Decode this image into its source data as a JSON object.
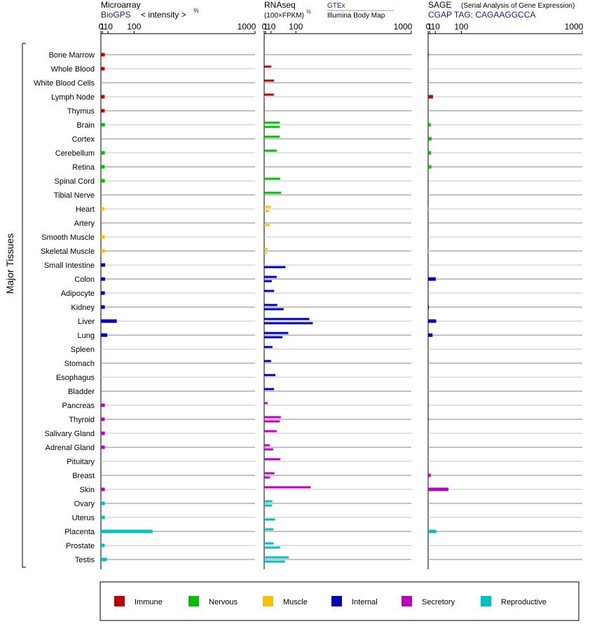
{
  "panels": [
    {
      "title": "Microarray",
      "subtitle": "BioGPS",
      "scale_label": "< intensity >",
      "scale_exp": "⅔",
      "ticks": [
        "0",
        "1",
        "10",
        "100",
        "1000"
      ],
      "tick_values": [
        0,
        1,
        10,
        100,
        1000
      ]
    },
    {
      "title": "RNAseq",
      "subtitle": "(100×FPKM)",
      "subtitle_exp": "½",
      "source1": "GTEx",
      "source2": "Illumina Body Map",
      "ticks": [
        "0",
        "1",
        "10",
        "100",
        "1000"
      ],
      "tick_values": [
        0,
        1,
        10,
        100,
        1000
      ]
    },
    {
      "title": "SAGE",
      "title_note": "(Serial Analysis of Gene Expression)",
      "subtitle": "CGAP TAG: CAGAAGGCCA",
      "ticks": [
        "0",
        "1",
        "10",
        "100",
        "1000"
      ],
      "tick_values": [
        0,
        1,
        10,
        100,
        1000
      ]
    }
  ],
  "y_axis_label": "Major Tissues",
  "legend": [
    {
      "label": "Immune",
      "color": "#c00000"
    },
    {
      "label": "Nervous",
      "color": "#00c000"
    },
    {
      "label": "Muscle",
      "color": "#ffc000"
    },
    {
      "label": "Internal",
      "color": "#0000b8"
    },
    {
      "label": "Secretory",
      "color": "#c000c0"
    },
    {
      "label": "Reproductive",
      "color": "#00c0c0"
    }
  ],
  "chart_data": {
    "type": "bar",
    "x_scale": "power-scaled intensity (0, 1, 10, 100, 1000)",
    "xlim": [
      0,
      1000
    ],
    "categories": [
      "Bone Marrow",
      "Whole Blood",
      "White Blood Cells",
      "Lymph Node",
      "Thymus",
      "Brain",
      "Cortex",
      "Cerebellum",
      "Retina",
      "Spinal Cord",
      "Tibial Nerve",
      "Heart",
      "Artery",
      "Smooth Muscle",
      "Skeletal Muscle",
      "Small Intestine",
      "Colon",
      "Adipocyte",
      "Kidney",
      "Liver",
      "Lung",
      "Spleen",
      "Stomach",
      "Esophagus",
      "Bladder",
      "Pancreas",
      "Thyroid",
      "Salivary Gland",
      "Adrenal Gland",
      "Pituitary",
      "Breast",
      "Skin",
      "Ovary",
      "Uterus",
      "Placenta",
      "Prostate",
      "Testis"
    ],
    "groups": [
      "Immune",
      "Immune",
      "Immune",
      "Immune",
      "Immune",
      "Nervous",
      "Nervous",
      "Nervous",
      "Nervous",
      "Nervous",
      "Nervous",
      "Muscle",
      "Muscle",
      "Muscle",
      "Muscle",
      "Internal",
      "Internal",
      "Internal",
      "Internal",
      "Internal",
      "Internal",
      "Internal",
      "Internal",
      "Internal",
      "Internal",
      "Secretory",
      "Secretory",
      "Secretory",
      "Secretory",
      "Secretory",
      "Secretory",
      "Secretory",
      "Reproductive",
      "Reproductive",
      "Reproductive",
      "Reproductive",
      "Reproductive"
    ],
    "series": [
      {
        "name": "Microarray",
        "values": [
          4.1,
          3.8,
          null,
          3.8,
          3.8,
          4.1,
          null,
          4.1,
          3.8,
          4.1,
          null,
          3.2,
          null,
          3.8,
          4.1,
          4.6,
          4.4,
          4.1,
          4.1,
          33,
          8.3,
          null,
          null,
          null,
          null,
          4.1,
          3.8,
          4.1,
          4.1,
          null,
          null,
          4.1,
          4.1,
          4.1,
          194,
          3.8,
          7.7
        ]
      },
      {
        "name": "GTEx",
        "values": [
          null,
          10.6,
          17,
          16.8,
          null,
          35,
          34,
          24.8,
          null,
          36,
          39,
          9.6,
          null,
          null,
          4.1,
          null,
          24.8,
          17.6,
          26.5,
          170,
          66,
          13.3,
          10.2,
          21,
          17.3,
          3.6,
          38,
          24.8,
          7.8,
          37,
          18.3,
          178,
          13,
          null,
          15.8,
          16.2,
          68
        ]
      },
      {
        "name": "Illumina Body Map",
        "values": [
          null,
          null,
          null,
          null,
          null,
          34,
          null,
          null,
          null,
          null,
          null,
          6.6,
          6.9,
          null,
          2.3,
          55,
          11.8,
          null,
          48,
          190,
          44,
          null,
          null,
          null,
          null,
          null,
          34,
          null,
          15,
          null,
          8.1,
          null,
          12.3,
          20,
          null,
          36,
          53
        ]
      },
      {
        "name": "SAGE",
        "values": [
          0.05,
          null,
          null,
          5.6,
          null,
          2.2,
          3.3,
          2.4,
          3,
          0.05,
          null,
          0.02,
          null,
          null,
          0.02,
          null,
          11,
          null,
          0.05,
          12,
          4.8,
          null,
          null,
          null,
          null,
          0.05,
          0.05,
          null,
          null,
          null,
          2.2,
          48,
          null,
          null,
          12,
          0.05,
          null
        ]
      }
    ]
  }
}
